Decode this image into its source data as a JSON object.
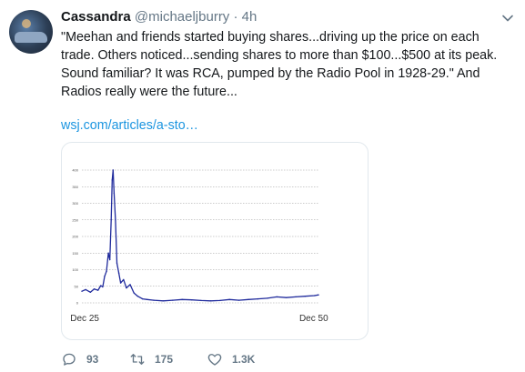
{
  "tweet": {
    "author_name": "Cassandra",
    "handle": "@michaeljburry",
    "separator": "·",
    "time": "4h",
    "text": "\"Meehan and friends started buying shares...driving up the price on each trade. Others noticed...sending shares to more than $100...$500 at its peak. Sound familiar? It was RCA, pumped by the Radio Pool in 1928-29.\" And Radios really were the future...",
    "link": "wsj.com/articles/a-sto…"
  },
  "actions": {
    "replies": "93",
    "retweets": "175",
    "likes": "1.3K"
  },
  "icons": {
    "menu": "chevron-down-icon",
    "reply": "reply-icon",
    "retweet": "retweet-icon",
    "like": "heart-icon"
  },
  "colors": {
    "link": "#1b95e0",
    "muted": "#657786",
    "chart_line": "#1f2a9c"
  },
  "chart_data": {
    "type": "line",
    "title": "",
    "xlabel": "",
    "ylabel": "",
    "x_tick_labels": [
      "Dec 25",
      "Dec 50"
    ],
    "ylim": [
      0,
      400
    ],
    "y_ticks": [
      0,
      50,
      100,
      150,
      200,
      250,
      300,
      350,
      400
    ],
    "grid": true,
    "series": [
      {
        "name": "",
        "x": [
          1925.9,
          1926.3,
          1926.8,
          1927.2,
          1927.6,
          1927.9,
          1928.1,
          1928.3,
          1928.5,
          1928.7,
          1928.85,
          1929.0,
          1929.1,
          1929.2,
          1929.3,
          1929.45,
          1929.6,
          1929.8,
          1930.0,
          1930.3,
          1930.6,
          1931.0,
          1931.4,
          1931.8,
          1932.3,
          1932.8,
          1933.5,
          1934.5,
          1935.5,
          1936.5,
          1937.5,
          1938.5,
          1939.5,
          1940.5,
          1941.5,
          1942.5,
          1943.5,
          1944.5,
          1945.5,
          1946.5,
          1947.5,
          1948.5,
          1949.5,
          1950.5,
          1950.9
        ],
        "y": [
          35,
          40,
          32,
          42,
          38,
          52,
          48,
          80,
          95,
          150,
          130,
          250,
          370,
          400,
          330,
          250,
          120,
          90,
          60,
          70,
          45,
          55,
          30,
          20,
          12,
          10,
          8,
          6,
          8,
          10,
          9,
          7,
          6,
          7,
          10,
          8,
          10,
          12,
          14,
          18,
          16,
          18,
          20,
          22,
          24
        ]
      }
    ]
  }
}
